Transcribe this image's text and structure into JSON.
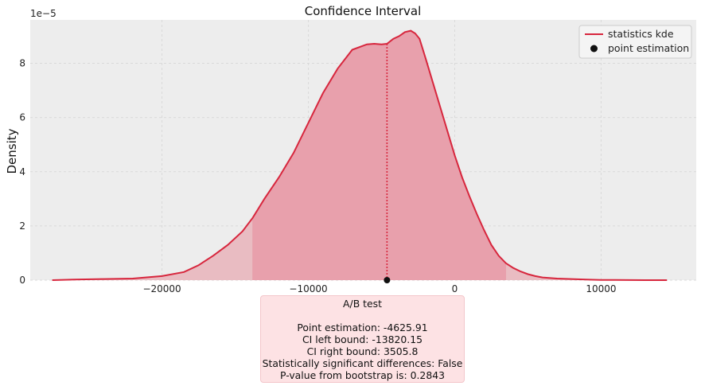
{
  "chart_data": {
    "type": "area",
    "title": "Confidence Interval",
    "ylabel": "Density",
    "xlabel": "",
    "y_offset_label": "1e−5",
    "xlim": [
      -29000,
      16500
    ],
    "ylim": [
      0,
      9.6
    ],
    "x_ticks": [
      -20000,
      -10000,
      0,
      10000
    ],
    "x_tick_labels": [
      "−20000",
      "−10000",
      "0",
      "10000"
    ],
    "y_ticks": [
      0,
      2,
      4,
      6,
      8
    ],
    "y_tick_labels": [
      "0",
      "2",
      "4",
      "6",
      "8"
    ],
    "grid": true,
    "legend_position": "top-right",
    "series": [
      {
        "name": "statistics kde",
        "color": "#d7263d",
        "x": [
          -27500,
          -26000,
          -24000,
          -22000,
          -20000,
          -18500,
          -17500,
          -16500,
          -15500,
          -14500,
          -13800,
          -13000,
          -12000,
          -11000,
          -10000,
          -9000,
          -8000,
          -7000,
          -6000,
          -5500,
          -5000,
          -4625.91,
          -4200,
          -3800,
          -3400,
          -3000,
          -2700,
          -2400,
          -2000,
          -1500,
          -1000,
          -500,
          0,
          500,
          1000,
          1500,
          2000,
          2500,
          3000,
          3505.8,
          4000,
          4500,
          5000,
          5500,
          6000,
          7000,
          8000,
          9000,
          10000,
          11000,
          12000,
          13000,
          14500
        ],
        "y": [
          0.0,
          0.02,
          0.04,
          0.06,
          0.15,
          0.3,
          0.55,
          0.9,
          1.3,
          1.8,
          2.3,
          3.0,
          3.8,
          4.7,
          5.8,
          6.9,
          7.8,
          8.5,
          8.7,
          8.72,
          8.7,
          8.72,
          8.9,
          9.0,
          9.15,
          9.2,
          9.1,
          8.9,
          8.2,
          7.3,
          6.4,
          5.5,
          4.6,
          3.8,
          3.1,
          2.45,
          1.85,
          1.3,
          0.9,
          0.62,
          0.45,
          0.32,
          0.22,
          0.15,
          0.1,
          0.06,
          0.04,
          0.02,
          0.01,
          0.005,
          0.003,
          0.001,
          0.0
        ]
      }
    ],
    "ci_lower": -13820.15,
    "ci_upper": 3505.8,
    "point_estimation": {
      "name": "point estimation",
      "x": -4625.91,
      "y": 0,
      "line_top": 8.72
    },
    "colors": {
      "line": "#d7263d",
      "fill_outer": "#e9bcc2",
      "fill_inner": "#e8a0ac",
      "axes_bg": "#ededed",
      "grid": "#d9d9d9",
      "point": "#111111"
    }
  },
  "stats_box": {
    "title": "A/B test",
    "lines": [
      "Point estimation: -4625.91",
      "CI left bound: -13820.15",
      "CI right bound: 3505.8",
      "Statistically significant differences: False",
      "P-value from bootstrap is: 0.2843"
    ],
    "colors": {
      "background": "#fde2e4",
      "border": "#f3c6ca"
    }
  }
}
